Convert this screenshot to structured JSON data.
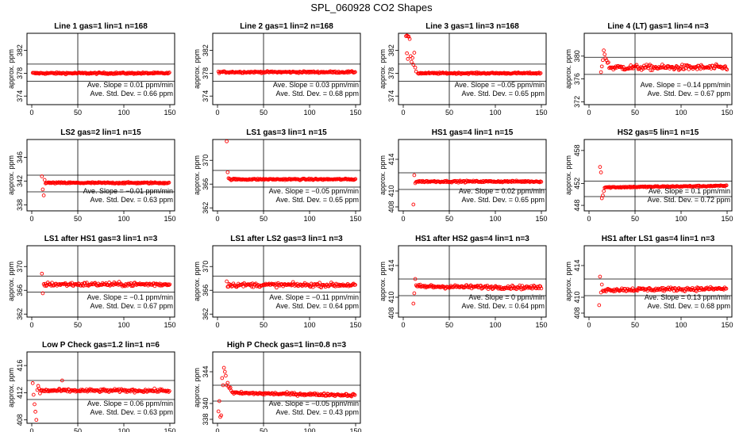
{
  "page_title": "SPL_060928  CO2 Shapes",
  "chart_data": [
    {
      "type": "scatter",
      "title": "Line 1 gas=1 lin=1 n=168",
      "ylabel": "approx. ppm",
      "xlim": [
        0,
        150
      ],
      "xticks": [
        0,
        50,
        100,
        150
      ],
      "ylim": [
        372.5,
        385
      ],
      "yticks": [
        374,
        378,
        382
      ],
      "hlines": [
        376.6,
        379.6
      ],
      "vline": 50,
      "pattern": {
        "start": 1,
        "level": 378.0,
        "noise": 0.14,
        "slope": 0,
        "early": []
      },
      "ann_slope": "Ave. Slope =  0.01  ppm/min",
      "ann_sd": "Ave. Std. Dev. =  0.66  ppm"
    },
    {
      "type": "scatter",
      "title": "Line 2 gas=1 lin=2 n=168",
      "ylabel": "approx. ppm",
      "xlim": [
        0,
        150
      ],
      "xticks": [
        0,
        50,
        100,
        150
      ],
      "ylim": [
        372.5,
        385
      ],
      "yticks": [
        374,
        378,
        382
      ],
      "hlines": [
        376.6,
        379.6
      ],
      "vline": 50,
      "pattern": {
        "start": 1,
        "level": 378.2,
        "noise": 0.14,
        "slope": 0,
        "early": []
      },
      "ann_slope": "Ave. Slope =  0.03  ppm/min",
      "ann_sd": "Ave. Std. Dev. =  0.68  ppm"
    },
    {
      "type": "scatter",
      "title": "Line 3 gas=1 lin=3 n=168",
      "ylabel": "approx. ppm",
      "xlim": [
        0,
        150
      ],
      "xticks": [
        0,
        50,
        100,
        150
      ],
      "ylim": [
        372.5,
        385
      ],
      "yticks": [
        374,
        378,
        382
      ],
      "hlines": [
        376.6,
        379.6
      ],
      "vline": 50,
      "pattern": {
        "start": 16,
        "level": 378.0,
        "noise": 0.12,
        "slope": 0,
        "early": [
          [
            3,
            384.5
          ],
          [
            4,
            384.6
          ],
          [
            5,
            384.5
          ],
          [
            6,
            384.4
          ],
          [
            7,
            384.0
          ],
          [
            4,
            381.5
          ],
          [
            5,
            380.5
          ],
          [
            8,
            381.0
          ],
          [
            9,
            380.0
          ],
          [
            10,
            380.7
          ],
          [
            11,
            379.5
          ],
          [
            12,
            381.6
          ],
          [
            13,
            379.0
          ],
          [
            14,
            378.3
          ]
        ]
      },
      "ann_slope": "Ave. Slope = −0.05  ppm/min",
      "ann_sd": "Ave. Std. Dev. =  0.65  ppm"
    },
    {
      "type": "scatter",
      "title": "Line 4 (LT) gas=1 lin=4 n=3",
      "ylabel": "approx. ppm",
      "xlim": [
        0,
        150
      ],
      "xticks": [
        0,
        50,
        100,
        150
      ],
      "ylim": [
        371.5,
        384
      ],
      "yticks": [
        372,
        376,
        380
      ],
      "hlines": [
        376.8,
        379.8
      ],
      "vline": 50,
      "pattern": {
        "start": 22,
        "level": 378.0,
        "noise": 0.45,
        "slope": 0,
        "early": [
          [
            13,
            377.2
          ],
          [
            14,
            378.2
          ],
          [
            15,
            379.3
          ],
          [
            16,
            381.0
          ],
          [
            17,
            380.3
          ],
          [
            18,
            379.6
          ],
          [
            19,
            379.3
          ],
          [
            20,
            378.8
          ],
          [
            21,
            378.9
          ]
        ]
      },
      "ann_slope": "Ave. Slope = −0.14  ppm/min",
      "ann_sd": "Ave. Std. Dev. =  0.67  ppm"
    },
    {
      "type": "scatter",
      "title": "LS2 gas=2 lin=1 n=15",
      "ylabel": "approx. ppm",
      "xlim": [
        0,
        150
      ],
      "xticks": [
        0,
        50,
        100,
        150
      ],
      "ylim": [
        337,
        349
      ],
      "yticks": [
        338,
        342,
        346
      ],
      "hlines": [
        340.2,
        343.0
      ],
      "vline": 50,
      "pattern": {
        "start": 15,
        "level": 341.7,
        "noise": 0.12,
        "slope": 0,
        "early": [
          [
            11,
            342.8
          ],
          [
            12,
            340.6
          ],
          [
            13,
            339.6
          ],
          [
            14,
            342.2
          ]
        ]
      },
      "ann_slope": "Ave. Slope = −0.01  ppm/min",
      "ann_sd": "Ave. Std. Dev. =  0.63  ppm"
    },
    {
      "type": "scatter",
      "title": "LS1 gas=3 lin=1 n=15",
      "ylabel": "approx. ppm",
      "xlim": [
        0,
        150
      ],
      "xticks": [
        0,
        50,
        100,
        150
      ],
      "ylim": [
        361.5,
        373.5
      ],
      "yticks": [
        362,
        366,
        370
      ],
      "hlines": [
        365.5,
        368.3
      ],
      "vline": 50,
      "pattern": {
        "start": 13,
        "level": 366.8,
        "noise": 0.12,
        "slope": 0,
        "early": [
          [
            10,
            373.2
          ],
          [
            11,
            368.0
          ],
          [
            12,
            367.0
          ]
        ]
      },
      "ann_slope": "Ave. Slope = −0.05  ppm/min",
      "ann_sd": "Ave. Std. Dev. =  0.65  ppm"
    },
    {
      "type": "scatter",
      "title": "HS1 gas=4 lin=1 n=15",
      "ylabel": "approx. ppm",
      "xlim": [
        0,
        150
      ],
      "xticks": [
        0,
        50,
        100,
        150
      ],
      "ylim": [
        407.5,
        416.5
      ],
      "yticks": [
        408,
        410,
        414
      ],
      "hlines": [
        410.2,
        412.3
      ],
      "vline": 50,
      "pattern": {
        "start": 14,
        "level": 411.2,
        "noise": 0.1,
        "slope": 0,
        "early": [
          [
            11,
            408.3
          ],
          [
            12,
            412.0
          ],
          [
            13,
            411.0
          ]
        ]
      },
      "ann_slope": "Ave. Slope =  0.02  ppm/min",
      "ann_sd": "Ave. Std. Dev. =  0.65  ppm"
    },
    {
      "type": "scatter",
      "title": "HS2 gas=5 lin=1 n=15",
      "ylabel": "approx. ppm",
      "xlim": [
        0,
        150
      ],
      "xticks": [
        0,
        50,
        100,
        150
      ],
      "ylim": [
        447,
        460
      ],
      "yticks": [
        448,
        452,
        458
      ],
      "hlines": [
        449.6,
        452.4
      ],
      "vline": 50,
      "pattern": {
        "start": 17,
        "level": 451.4,
        "noise": 0.12,
        "slope": 0.002,
        "early": [
          [
            12,
            455.0
          ],
          [
            13,
            454.0
          ],
          [
            14,
            449.3
          ],
          [
            15,
            449.8
          ],
          [
            16,
            450.6
          ]
        ]
      },
      "ann_slope": "Ave. Slope =  0.1  ppm/min",
      "ann_sd": "Ave. Std. Dev. =  0.72  ppm"
    },
    {
      "type": "scatter",
      "title": "LS1 after HS1 gas=3 lin=1 n=3",
      "ylabel": "approx. ppm",
      "xlim": [
        0,
        150
      ],
      "xticks": [
        0,
        50,
        100,
        150
      ],
      "ylim": [
        361.5,
        373.5
      ],
      "yticks": [
        362,
        366,
        370
      ],
      "hlines": [
        365.7,
        368.4
      ],
      "vline": 50,
      "pattern": {
        "start": 13,
        "level": 367.0,
        "noise": 0.32,
        "slope": 0,
        "early": [
          [
            11,
            368.8
          ],
          [
            12,
            365.5
          ]
        ]
      },
      "ann_slope": "Ave. Slope = −0.1  ppm/min",
      "ann_sd": "Ave. Std. Dev. =  0.67  ppm"
    },
    {
      "type": "scatter",
      "title": "LS1 after LS2 gas=3 lin=1 n=3",
      "ylabel": "approx. ppm",
      "xlim": [
        0,
        150
      ],
      "xticks": [
        0,
        50,
        100,
        150
      ],
      "ylim": [
        361.5,
        373.5
      ],
      "yticks": [
        362,
        366,
        370
      ],
      "hlines": [
        365.7,
        368.4
      ],
      "vline": 50,
      "pattern": {
        "start": 11,
        "level": 366.9,
        "noise": 0.32,
        "slope": 0,
        "early": [
          [
            10,
            367.5
          ]
        ]
      },
      "ann_slope": "Ave. Slope = −0.11  ppm/min",
      "ann_sd": "Ave. Std. Dev. =  0.64  ppm"
    },
    {
      "type": "scatter",
      "title": "HS1 after HS2 gas=4 lin=1 n=3",
      "ylabel": "approx. ppm",
      "xlim": [
        0,
        150
      ],
      "xticks": [
        0,
        50,
        100,
        150
      ],
      "ylim": [
        407.5,
        416.5
      ],
      "yticks": [
        408,
        410,
        414
      ],
      "hlines": [
        410.2,
        412.3
      ],
      "vline": 50,
      "pattern": {
        "start": 14,
        "level": 411.3,
        "noise": 0.22,
        "slope": -0.001,
        "early": [
          [
            11,
            409.2
          ],
          [
            12,
            410.5
          ],
          [
            13,
            412.3
          ]
        ]
      },
      "ann_slope": "Ave. Slope =  0  ppm/min",
      "ann_sd": "Ave. Std. Dev. =  0.64  ppm"
    },
    {
      "type": "scatter",
      "title": "HS1 after LS1 gas=4 lin=1 n=3",
      "ylabel": "approx. ppm",
      "xlim": [
        0,
        150
      ],
      "xticks": [
        0,
        50,
        100,
        150
      ],
      "ylim": [
        407.5,
        416.5
      ],
      "yticks": [
        408,
        410,
        414
      ],
      "hlines": [
        410.2,
        412.3
      ],
      "vline": 50,
      "pattern": {
        "start": 15,
        "level": 411.0,
        "noise": 0.22,
        "slope": 0.001,
        "early": [
          [
            11,
            409.0
          ],
          [
            12,
            412.6
          ],
          [
            13,
            410.6
          ],
          [
            14,
            411.6
          ]
        ]
      },
      "ann_slope": "Ave. Slope =  0.13  ppm/min",
      "ann_sd": "Ave. Std. Dev. =  0.68  ppm"
    },
    {
      "type": "scatter",
      "title": "Low P Check gas=1.2 lin=1 n=6",
      "ylabel": "approx. ppm",
      "xlim": [
        0,
        150
      ],
      "xticks": [
        0,
        50,
        100,
        150
      ],
      "ylim": [
        407.5,
        418
      ],
      "yticks": [
        408,
        412,
        416
      ],
      "hlines": [
        411.0,
        413.8
      ],
      "vline": 50,
      "pattern": {
        "start": 10,
        "level": 412.3,
        "noise": 0.22,
        "slope": 0,
        "early": [
          [
            1,
            413.4
          ],
          [
            2,
            411.7
          ],
          [
            3,
            410.3
          ],
          [
            4,
            409.2
          ],
          [
            5,
            408.0
          ],
          [
            6,
            412.4
          ],
          [
            7,
            413.0
          ],
          [
            8,
            412.6
          ],
          [
            9,
            411.9
          ],
          [
            33,
            413.8
          ]
        ]
      },
      "ann_slope": "Ave. Slope =  0.06  ppm/min",
      "ann_sd": "Ave. Std. Dev. =  0.63  ppm"
    },
    {
      "type": "scatter",
      "title": "High P Check gas=1 lin=0.8 n=3",
      "ylabel": "approx. ppm",
      "xlim": [
        0,
        150
      ],
      "xticks": [
        0,
        50,
        100,
        150
      ],
      "ylim": [
        337.5,
        346.5
      ],
      "yticks": [
        338,
        340,
        344
      ],
      "hlines": [
        340.3,
        342.3
      ],
      "vline": 50,
      "pattern": {
        "start": 16,
        "level": 341.2,
        "noise": 0.16,
        "slope": -0.002,
        "early": [
          [
            1,
            339.0
          ],
          [
            2,
            340.3
          ],
          [
            3,
            338.3
          ],
          [
            4,
            338.5
          ],
          [
            5,
            343.2
          ],
          [
            6,
            342.3
          ],
          [
            7,
            344.5
          ],
          [
            8,
            344.0
          ],
          [
            9,
            343.5
          ],
          [
            10,
            342.3
          ],
          [
            11,
            342.6
          ],
          [
            12,
            342.1
          ],
          [
            13,
            341.9
          ],
          [
            14,
            342.0
          ],
          [
            15,
            341.6
          ]
        ]
      },
      "ann_slope": "Ave. Slope = −0.05  ppm/min",
      "ann_sd": "Ave. Std. Dev. =  0.43  ppm"
    }
  ],
  "colors": {
    "marker": "#ff0000",
    "axis": "#000000",
    "text": "#000000",
    "background": "#ffffff"
  }
}
